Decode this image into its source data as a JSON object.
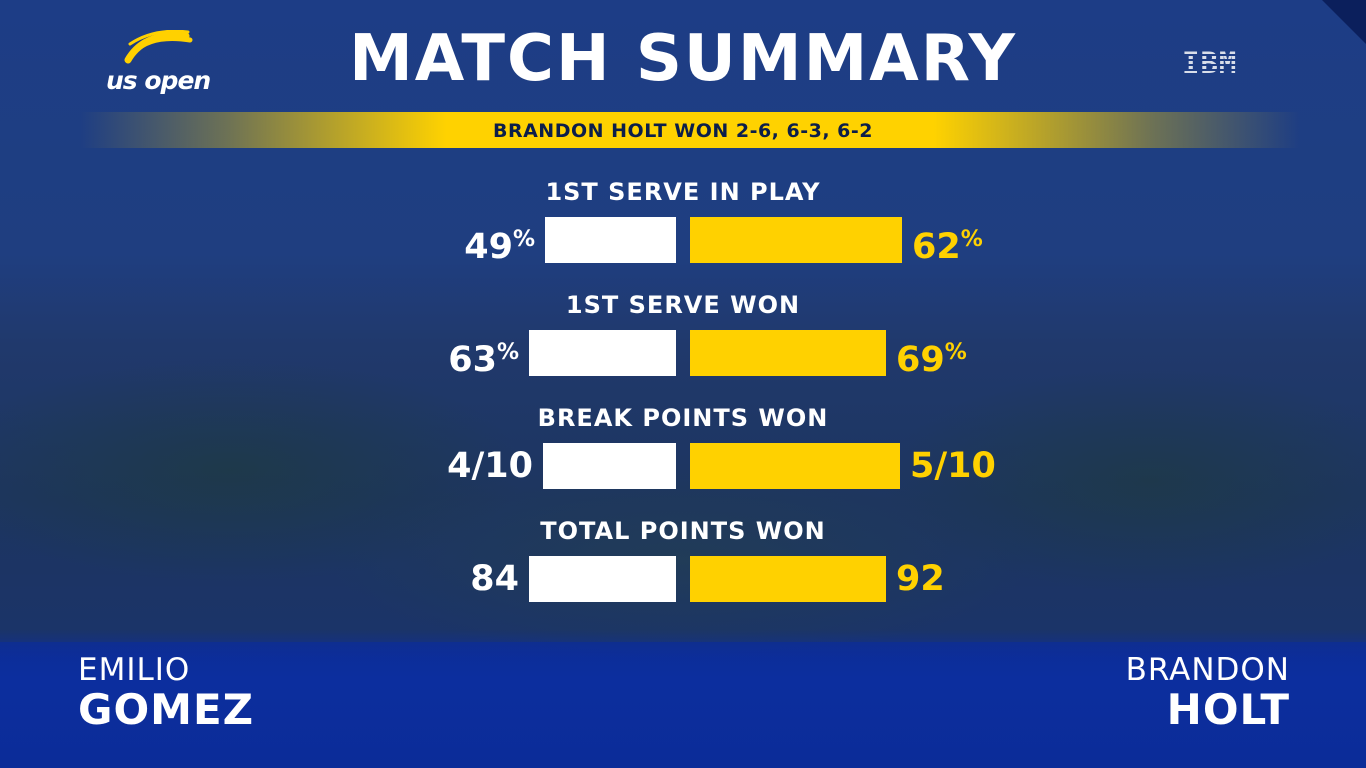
{
  "brand": {
    "logo_text": "us open",
    "sponsor": "IBM"
  },
  "title": "MATCH SUMMARY",
  "result_banner": "BRANDON HOLT WON 2-6, 6-3, 6-2",
  "players": {
    "left": {
      "first": "EMILIO",
      "last": "GOMEZ"
    },
    "right": {
      "first": "BRANDON",
      "last": "HOLT"
    }
  },
  "colors": {
    "left_bar": "#ffffff",
    "right_bar": "#ffd100",
    "background": "#1e3a78",
    "banner": "#ffd200"
  },
  "chart_data": {
    "type": "bar",
    "orientation": "horizontal-butterfly",
    "series": [
      {
        "name": "EMILIO GOMEZ",
        "side": "left",
        "color": "#ffffff"
      },
      {
        "name": "BRANDON HOLT",
        "side": "right",
        "color": "#ffd100"
      }
    ],
    "stats": [
      {
        "label": "1ST SERVE IN PLAY",
        "left": {
          "value": 49,
          "text": "49",
          "suffix": "%"
        },
        "right": {
          "value": 62,
          "text": "62",
          "suffix": "%"
        }
      },
      {
        "label": "1ST SERVE WON",
        "left": {
          "value": 63,
          "text": "63",
          "suffix": "%"
        },
        "right": {
          "value": 69,
          "text": "69",
          "suffix": "%"
        }
      },
      {
        "label": "BREAK POINTS WON",
        "left": {
          "value": 4,
          "text": "4/10",
          "suffix": ""
        },
        "right": {
          "value": 5,
          "text": "5/10",
          "suffix": ""
        }
      },
      {
        "label": "TOTAL POINTS WON",
        "left": {
          "value": 84,
          "text": "84",
          "suffix": ""
        },
        "right": {
          "value": 92,
          "text": "92",
          "suffix": ""
        }
      }
    ]
  }
}
